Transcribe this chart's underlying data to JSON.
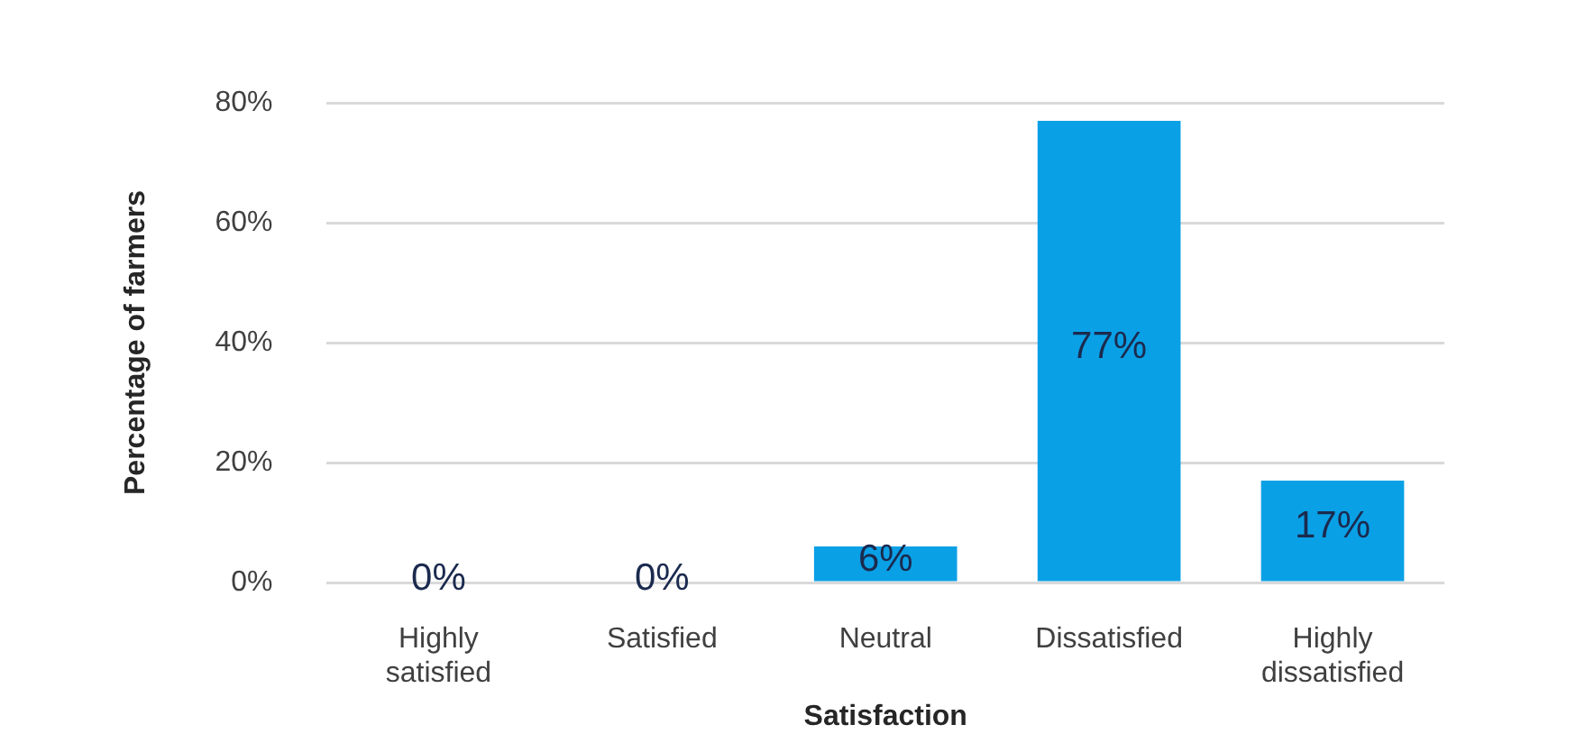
{
  "chart_data": {
    "type": "bar",
    "xlabel": "Satisfaction",
    "ylabel": "Percentage of farmers",
    "categories": [
      "Highly satisfied",
      "Satisfied",
      "Neutral",
      "Dissatisfied",
      "Highly dissatisfied"
    ],
    "values": [
      0,
      0,
      6,
      77,
      17
    ],
    "value_labels": [
      "0%",
      "0%",
      "6%",
      "77%",
      "17%"
    ],
    "color": "#0aa0e6",
    "ylim": [
      0,
      80
    ],
    "yticks": [
      {
        "value": 0,
        "label": "0%"
      },
      {
        "value": 20,
        "label": "20%"
      },
      {
        "value": 40,
        "label": "40%"
      },
      {
        "value": 60,
        "label": "60%"
      },
      {
        "value": 80,
        "label": "80%"
      }
    ],
    "grid": "y",
    "legend": false
  }
}
